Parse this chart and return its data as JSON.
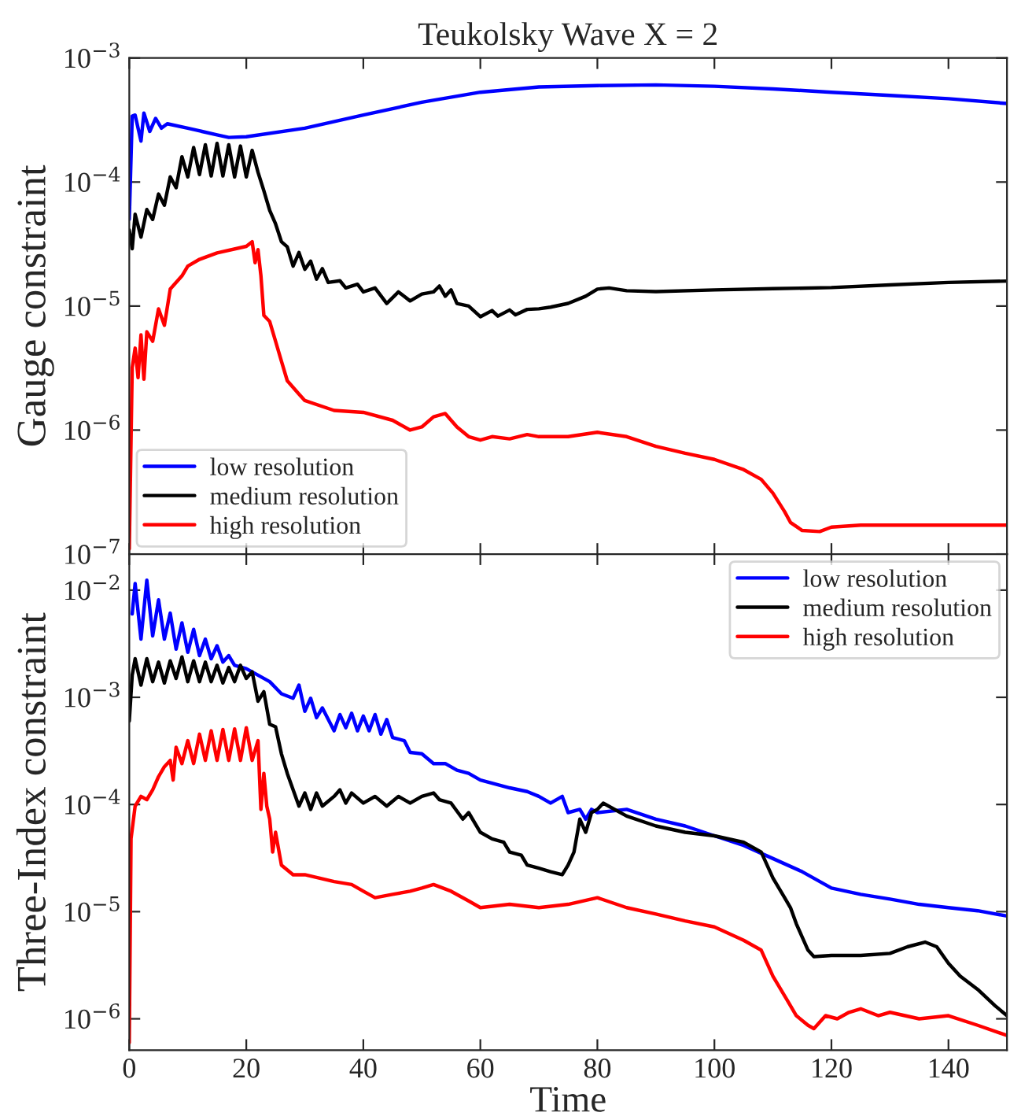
{
  "chart_data": [
    {
      "type": "line",
      "title": "Teukolsky Wave X = 2",
      "ylabel": "Gauge constraint",
      "log": "y",
      "grid": false,
      "legend": "bottom left",
      "tick_labels": "y",
      "marker": "none",
      "line_style": "solid",
      "xlim": [
        0,
        150
      ],
      "xticks": [
        0,
        20,
        40,
        60,
        80,
        100,
        120,
        140
      ],
      "ylim": [
        1e-07,
        0.001
      ],
      "yticks": [
        {
          "value": 1e-07,
          "label": "10$^{−7}$"
        },
        {
          "value": 1e-06,
          "label": "10$^{−6}$"
        },
        {
          "value": 1e-05,
          "label": "10$^{−5}$"
        },
        {
          "value": 0.0001,
          "label": "10$^{−4}$"
        },
        {
          "value": 0.001,
          "label": "10$^{−3}$"
        }
      ],
      "series": [
        {
          "name": "low resolution",
          "color": "#0000ff",
          "x": [
            0,
            0.5,
            1,
            2,
            2.5,
            3.5,
            4.5,
            5.5,
            6.5,
            10,
            15,
            17,
            20,
            30,
            40,
            50,
            60,
            70,
            80,
            90,
            100,
            110,
            120,
            130,
            140,
            150
          ],
          "values": [
            5e-05,
            0.00034,
            0.000347,
            0.000214,
            0.00036,
            0.000256,
            0.000326,
            0.000272,
            0.000295,
            0.000272,
            0.00024,
            0.000229,
            0.000232,
            0.000272,
            0.000347,
            0.00044,
            0.00053,
            0.000585,
            0.0006,
            0.000607,
            0.000592,
            0.000564,
            0.00053,
            0.0005,
            0.00047,
            0.00043
          ]
        },
        {
          "name": "medium resolution",
          "color": "#000000",
          "x": [
            0,
            0.5,
            1,
            2,
            3,
            4,
            5,
            6,
            7,
            8,
            9,
            10,
            11,
            12,
            13,
            14,
            15,
            16,
            17,
            18,
            19,
            20,
            21,
            22,
            23,
            24,
            25,
            26,
            27,
            28,
            29,
            30,
            31,
            32,
            33,
            34,
            36,
            37,
            39,
            40,
            42,
            44,
            46,
            48,
            50,
            52,
            53,
            54,
            55,
            56,
            58,
            60,
            62,
            63,
            65,
            66,
            68,
            70,
            72,
            75,
            78,
            80,
            82,
            85,
            90,
            100,
            110,
            120,
            130,
            140,
            150
          ],
          "values": [
            4.1e-05,
            2.9e-05,
            5.5e-05,
            3.6e-05,
            6e-05,
            5e-05,
            8e-05,
            6.5e-05,
            0.00011,
            9e-05,
            0.00016,
            0.00011,
            0.00019,
            0.000115,
            0.0002,
            0.000112,
            0.000205,
            0.000112,
            0.0002,
            0.00011,
            0.000195,
            0.00011,
            0.00018,
            0.00012,
            8.5e-05,
            5.9e-05,
            4.6e-05,
            3.3e-05,
            3e-05,
            2.1e-05,
            2.7e-05,
            1.98e-05,
            2.3e-05,
            1.65e-05,
            2e-05,
            1.55e-05,
            1.6e-05,
            1.4e-05,
            1.5e-05,
            1.3e-05,
            1.4e-05,
            1.05e-05,
            1.3e-05,
            1.1e-05,
            1.25e-05,
            1.3e-05,
            1.45e-05,
            1.2e-05,
            1.35e-05,
            1.05e-05,
            1e-05,
            8.2e-06,
            9.2e-06,
            8.3e-06,
            9.3e-06,
            8.5e-06,
            9.4e-06,
            9.5e-06,
            9.8e-06,
            1.05e-05,
            1.2e-05,
            1.37e-05,
            1.4e-05,
            1.33e-05,
            1.31e-05,
            1.35e-05,
            1.38e-05,
            1.41e-05,
            1.48e-05,
            1.55e-05,
            1.59e-05
          ]
        },
        {
          "name": "high resolution",
          "color": "#ff0000",
          "x": [
            0,
            0.5,
            1,
            1.5,
            2,
            2.5,
            3,
            4,
            5,
            6,
            7,
            9,
            10,
            12,
            15,
            20,
            21,
            21.5,
            22,
            22.5,
            23,
            24,
            25,
            26,
            27,
            29,
            30,
            35,
            40,
            45,
            48,
            50,
            52,
            54,
            56,
            58,
            60,
            62,
            65,
            68,
            70,
            75,
            80,
            85,
            90,
            95,
            100,
            105,
            108,
            110,
            112,
            113,
            115,
            118,
            120,
            125,
            130,
            140,
            150
          ],
          "values": [
            1.1e-07,
            3.18e-06,
            4.58e-06,
            2.65e-06,
            5.85e-06,
            2.57e-06,
            6.2e-06,
            5.2e-06,
            9.5e-06,
            7e-06,
            1.37e-05,
            1.75e-05,
            2.1e-05,
            2.38e-05,
            2.68e-05,
            3.03e-05,
            3.3e-05,
            2.24e-05,
            2.85e-05,
            1.75e-05,
            8.4e-06,
            7.5e-06,
            5.2e-06,
            3.6e-06,
            2.5e-06,
            1.95e-06,
            1.73e-06,
            1.44e-06,
            1.39e-06,
            1.2e-06,
            1e-06,
            1.06e-06,
            1.28e-06,
            1.36e-06,
            1.06e-06,
            8.85e-07,
            8.3e-07,
            8.85e-07,
            8.5e-07,
            9.2e-07,
            8.85e-07,
            8.85e-07,
            9.6e-07,
            8.85e-07,
            7.4e-07,
            6.5e-07,
            5.8e-07,
            4.8e-07,
            4e-07,
            3.1e-07,
            2.2e-07,
            1.8e-07,
            1.55e-07,
            1.52e-07,
            1.65e-07,
            1.71e-07,
            1.71e-07,
            1.71e-07,
            1.71e-07
          ]
        }
      ]
    },
    {
      "type": "line",
      "xlabel": "Time",
      "ylabel": "Three-Index constraint",
      "log": "y",
      "grid": false,
      "legend": "top right",
      "marker": "none",
      "line_style": "solid",
      "xlim": [
        0,
        150
      ],
      "xticks": [
        0,
        20,
        40,
        60,
        80,
        100,
        120,
        140
      ],
      "ylim": [
        5.1e-07,
        0.0217
      ],
      "yticks": [
        {
          "value": 1e-06,
          "label": "10$^{−6}$"
        },
        {
          "value": 1e-05,
          "label": "10$^{−5}$"
        },
        {
          "value": 0.0001,
          "label": "10$^{−4}$"
        },
        {
          "value": 0.001,
          "label": "10$^{−3}$"
        },
        {
          "value": 0.01,
          "label": "10$^{−2}$"
        }
      ],
      "series": [
        {
          "name": "low resolution",
          "color": "#0000ff",
          "x": [
            0.5,
            1,
            2,
            3,
            4,
            5,
            6,
            7,
            8,
            9,
            10,
            11,
            12,
            13,
            14,
            15,
            16,
            17,
            18,
            20,
            22,
            24,
            26,
            28,
            29,
            30,
            31,
            32,
            33,
            35,
            36,
            37,
            38,
            39,
            40,
            41,
            42,
            43,
            44,
            45,
            47,
            48,
            50,
            52,
            54,
            56,
            58,
            60,
            62,
            65,
            68,
            70,
            72,
            74,
            75,
            77,
            78,
            79,
            80,
            85,
            90,
            95,
            100,
            105,
            110,
            115,
            120,
            125,
            130,
            135,
            140,
            145,
            150
          ],
          "values": [
            0.006,
            0.0115,
            0.00349,
            0.0124,
            0.00374,
            0.0081,
            0.00349,
            0.0061,
            0.00282,
            0.00495,
            0.00263,
            0.0043,
            0.00245,
            0.00349,
            0.00229,
            0.00303,
            0.00213,
            0.00245,
            0.00199,
            0.00185,
            0.00161,
            0.0014,
            0.00108,
            0.00098,
            0.0013,
            0.00074,
            0.00098,
            0.000645,
            0.000796,
            0.000487,
            0.00069,
            0.00052,
            0.00071,
            0.000487,
            0.00067,
            0.000487,
            0.00069,
            0.000453,
            0.00062,
            0.000422,
            0.000394,
            0.000306,
            0.000297,
            0.000241,
            0.000241,
            0.000209,
            0.000195,
            0.000169,
            0.000158,
            0.000143,
            0.000132,
            0.000119,
            0.000103,
            0.000119,
            8.4e-05,
            9e-05,
            7.3e-05,
            9e-05,
            8.4e-05,
            9e-05,
            7.3e-05,
            6.3e-05,
            5.1e-05,
            4.15e-05,
            3.13e-05,
            2.36e-05,
            1.66e-05,
            1.45e-05,
            1.31e-05,
            1.17e-05,
            1.09e-05,
            1.02e-05,
            9.1e-06
          ]
        },
        {
          "name": "medium resolution",
          "color": "#000000",
          "x": [
            0,
            0.5,
            1,
            2,
            3,
            4,
            5,
            6,
            7,
            8,
            9,
            10,
            11,
            12,
            13,
            14,
            15,
            16,
            17,
            18,
            19,
            20,
            21,
            22,
            23,
            24,
            25,
            26,
            27,
            28,
            29,
            30,
            31,
            32,
            33,
            35,
            36,
            37,
            38,
            40,
            42,
            44,
            46,
            48,
            50,
            52,
            53,
            55,
            57,
            58,
            60,
            62,
            64,
            65,
            67,
            68,
            70,
            72,
            74,
            75,
            76,
            77,
            78,
            79,
            80,
            81,
            85,
            90,
            95,
            100,
            105,
            108,
            110,
            112,
            113,
            114,
            115,
            116,
            117,
            120,
            125,
            130,
            133,
            136,
            138,
            140,
            142,
            145,
            148,
            150
          ],
          "values": [
            0.0006,
            0.00161,
            0.00229,
            0.0013,
            0.00229,
            0.0014,
            0.00213,
            0.00136,
            0.00219,
            0.0015,
            0.00238,
            0.0014,
            0.00219,
            0.0014,
            0.00213,
            0.0014,
            0.00199,
            0.00136,
            0.0019,
            0.0014,
            0.00199,
            0.0015,
            0.00173,
            0.00092,
            0.00113,
            0.00056,
            0.00053,
            0.000297,
            0.000195,
            0.000137,
            9.66e-05,
            0.000128,
            9e-05,
            0.000128,
            9.66e-05,
            0.000119,
            0.000137,
            0.000103,
            0.000128,
            0.000103,
            0.000119,
            9.66e-05,
            0.000119,
            0.000103,
            0.000119,
            0.000128,
            0.000111,
            0.000103,
            7.3e-05,
            8.4e-05,
            5.5e-05,
            4.78e-05,
            4.45e-05,
            3.6e-05,
            3.36e-05,
            2.72e-05,
            2.54e-05,
            2.36e-05,
            2.21e-05,
            2.72e-05,
            3.6e-05,
            7.3e-05,
            5.5e-05,
            8.4e-05,
            9e-05,
            0.000103,
            7.8e-05,
            6.3e-05,
            5.5e-05,
            5.1e-05,
            4.45e-05,
            3.6e-05,
            2.06e-05,
            1.35e-05,
            1.09e-05,
            7.7e-06,
            5.8e-06,
            4.37e-06,
            3.8e-06,
            3.9e-06,
            3.9e-06,
            4.08e-06,
            4.7e-06,
            5.2e-06,
            4.7e-06,
            3.3e-06,
            2.5e-06,
            1.88e-06,
            1.32e-06,
            1.07e-06
          ]
        },
        {
          "name": "high resolution",
          "color": "#ff0000",
          "x": [
            0,
            0.3,
            1,
            2,
            3,
            4,
            5,
            6,
            7,
            7.5,
            8,
            9,
            10,
            11,
            12,
            13,
            14,
            15,
            16,
            17,
            18,
            19,
            20,
            21,
            22,
            22.5,
            23,
            23.5,
            24,
            24.5,
            25,
            26,
            28,
            30,
            35,
            38,
            40,
            42,
            45,
            48,
            50,
            52,
            55,
            58,
            60,
            65,
            70,
            75,
            80,
            85,
            90,
            95,
            100,
            105,
            108,
            110,
            112,
            114,
            116,
            117,
            119,
            121,
            123,
            125,
            128,
            130,
            135,
            140,
            145,
            150
          ],
          "values": [
            6e-07,
            4.78e-05,
            9.66e-05,
            0.000119,
            0.000111,
            0.000137,
            0.000182,
            0.000225,
            0.000258,
            0.000169,
            0.000342,
            0.000241,
            0.000394,
            0.000241,
            0.000453,
            0.000258,
            0.000487,
            0.000258,
            0.0005,
            0.000258,
            0.000507,
            0.000258,
            0.00052,
            0.000258,
            0.000394,
            9e-05,
            0.000195,
            9.66e-05,
            7.3e-05,
            3.6e-05,
            5.5e-05,
            2.72e-05,
            2.21e-05,
            2.21e-05,
            1.91e-05,
            1.79e-05,
            1.55e-05,
            1.35e-05,
            1.45e-05,
            1.55e-05,
            1.66e-05,
            1.79e-05,
            1.55e-05,
            1.26e-05,
            1.09e-05,
            1.17e-05,
            1.09e-05,
            1.17e-05,
            1.35e-05,
            1.09e-05,
            9.5e-06,
            8.2e-06,
            7.2e-06,
            5.4e-06,
            4.37e-06,
            2.5e-06,
            1.64e-06,
            1.07e-06,
            8.7e-07,
            8.1e-07,
            1.07e-06,
            1e-06,
            1.15e-06,
            1.24e-06,
            1.07e-06,
            1.15e-06,
            1e-06,
            1.07e-06,
            8.7e-07,
            7e-07
          ]
        }
      ]
    }
  ]
}
